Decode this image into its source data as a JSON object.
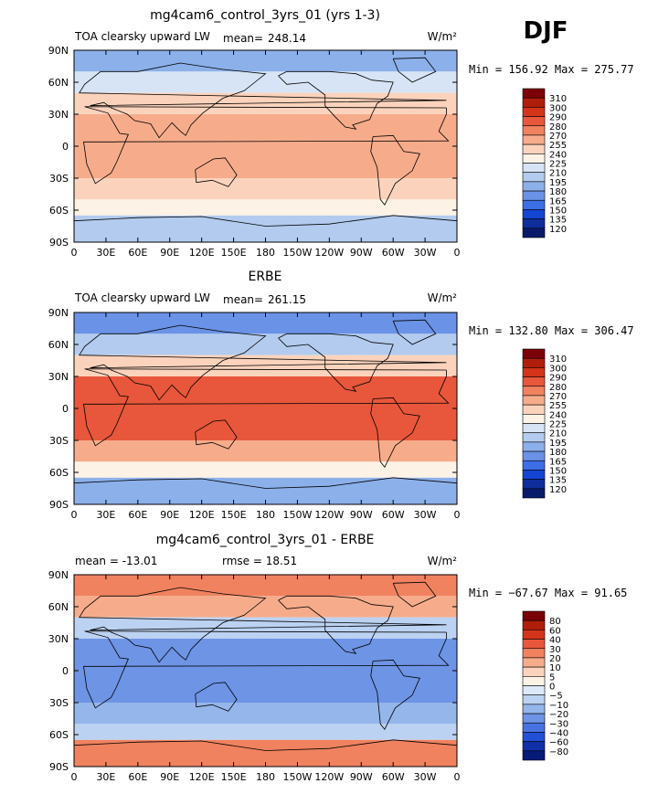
{
  "season": "DJF",
  "units": "W/m²",
  "panels": [
    {
      "title": "mg4cam6_control_3yrs_01 (yrs 1-3)",
      "left_label": "TOA clearsky upward LW",
      "mean_label": "mean=",
      "mean": "248.14",
      "minmax": "Min = 156.92 Max = 275.77",
      "colorbar": [
        "310",
        "300",
        "290",
        "280",
        "270",
        "255",
        "240",
        "225",
        "210",
        "195",
        "180",
        "165",
        "150",
        "135",
        "120"
      ]
    },
    {
      "title": "ERBE",
      "left_label": "TOA clearsky upward LW",
      "mean_label": "mean=",
      "mean": "261.15",
      "minmax": "Min = 132.80 Max = 306.47",
      "colorbar": [
        "310",
        "300",
        "290",
        "280",
        "270",
        "255",
        "240",
        "225",
        "210",
        "195",
        "180",
        "165",
        "150",
        "135",
        "120"
      ]
    },
    {
      "title": "mg4cam6_control_3yrs_01 - ERBE",
      "left_label": "mean =  -13.01",
      "rmse_label": "rmse =   18.51",
      "minmax": "Min = −67.67 Max =  91.65",
      "colorbar": [
        "80",
        "60",
        "40",
        "30",
        "20",
        "10",
        "5",
        "0",
        "−5",
        "−10",
        "−20",
        "−30",
        "−40",
        "−60",
        "−80"
      ]
    }
  ],
  "x_ticks": [
    "0",
    "30E",
    "60E",
    "90E",
    "120E",
    "150E",
    "180",
    "150W",
    "120W",
    "90W",
    "60W",
    "30W",
    "0"
  ],
  "y_ticks": [
    "90N",
    "60N",
    "30N",
    "0",
    "30S",
    "60S",
    "90S"
  ],
  "colors": {
    "abs": [
      "#7d0008",
      "#b01d0b",
      "#d4341a",
      "#e8573b",
      "#f0825f",
      "#f6ac8b",
      "#fbd3bc",
      "#fdf2e6",
      "#d7e4f5",
      "#b3cbee",
      "#8cb0ea",
      "#6a92e6",
      "#3c6ee6",
      "#1444d2",
      "#0f2e9c",
      "#091a6b"
    ],
    "diff": [
      "#780006",
      "#b01d0b",
      "#d4341a",
      "#e8573b",
      "#f0825f",
      "#f6ac8b",
      "#fbd3bc",
      "#fdf2e6",
      "#dce9f8",
      "#bcd2f2",
      "#94b6eb",
      "#6e94e6",
      "#4773e2",
      "#2050d6",
      "#1030a8",
      "#061a78"
    ]
  },
  "chart_data": [
    {
      "type": "heatmap",
      "title": "mg4cam6_control_3yrs_01 (yrs 1-3)",
      "subtitle": "TOA clearsky upward LW",
      "mean": 248.14,
      "min": 156.92,
      "max": 275.77,
      "units": "W/m²",
      "levels": [
        120,
        135,
        150,
        165,
        180,
        195,
        210,
        225,
        240,
        255,
        270,
        280,
        290,
        300,
        310
      ],
      "latitude_bands": [
        {
          "lat": "90N-70N",
          "value": 190
        },
        {
          "lat": "70N-50N",
          "value": 215
        },
        {
          "lat": "50N-30N",
          "value": 245
        },
        {
          "lat": "30N-30S",
          "value": 262
        },
        {
          "lat": "30S-50S",
          "value": 250
        },
        {
          "lat": "50S-65S",
          "value": 232
        },
        {
          "lat": "65S-90S",
          "value": 198
        }
      ]
    },
    {
      "type": "heatmap",
      "title": "ERBE",
      "subtitle": "TOA clearsky upward LW",
      "mean": 261.15,
      "min": 132.8,
      "max": 306.47,
      "units": "W/m²",
      "levels": [
        120,
        135,
        150,
        165,
        180,
        195,
        210,
        225,
        240,
        255,
        270,
        280,
        290,
        300,
        310
      ],
      "latitude_bands": [
        {
          "lat": "90N-70N",
          "value": 170
        },
        {
          "lat": "70N-50N",
          "value": 205
        },
        {
          "lat": "50N-30N",
          "value": 245
        },
        {
          "lat": "30N-30S",
          "value": 282
        },
        {
          "lat": "30S-50S",
          "value": 262
        },
        {
          "lat": "50S-65S",
          "value": 235
        },
        {
          "lat": "65S-90S",
          "value": 180
        }
      ]
    },
    {
      "type": "heatmap",
      "title": "mg4cam6_control_3yrs_01 - ERBE",
      "mean": -13.01,
      "rmse": 18.51,
      "min": -67.67,
      "max": 91.65,
      "units": "W/m²",
      "levels": [
        -80,
        -60,
        -40,
        -30,
        -20,
        -10,
        -5,
        0,
        5,
        10,
        20,
        30,
        40,
        60,
        80
      ],
      "latitude_bands": [
        {
          "lat": "90N-70N",
          "value": 22
        },
        {
          "lat": "70N-50N",
          "value": 12
        },
        {
          "lat": "50N-30N",
          "value": -8
        },
        {
          "lat": "30N-30S",
          "value": -22
        },
        {
          "lat": "30S-50S",
          "value": -15
        },
        {
          "lat": "50S-65S",
          "value": -8
        },
        {
          "lat": "65S-90S",
          "value": 20
        }
      ]
    }
  ]
}
